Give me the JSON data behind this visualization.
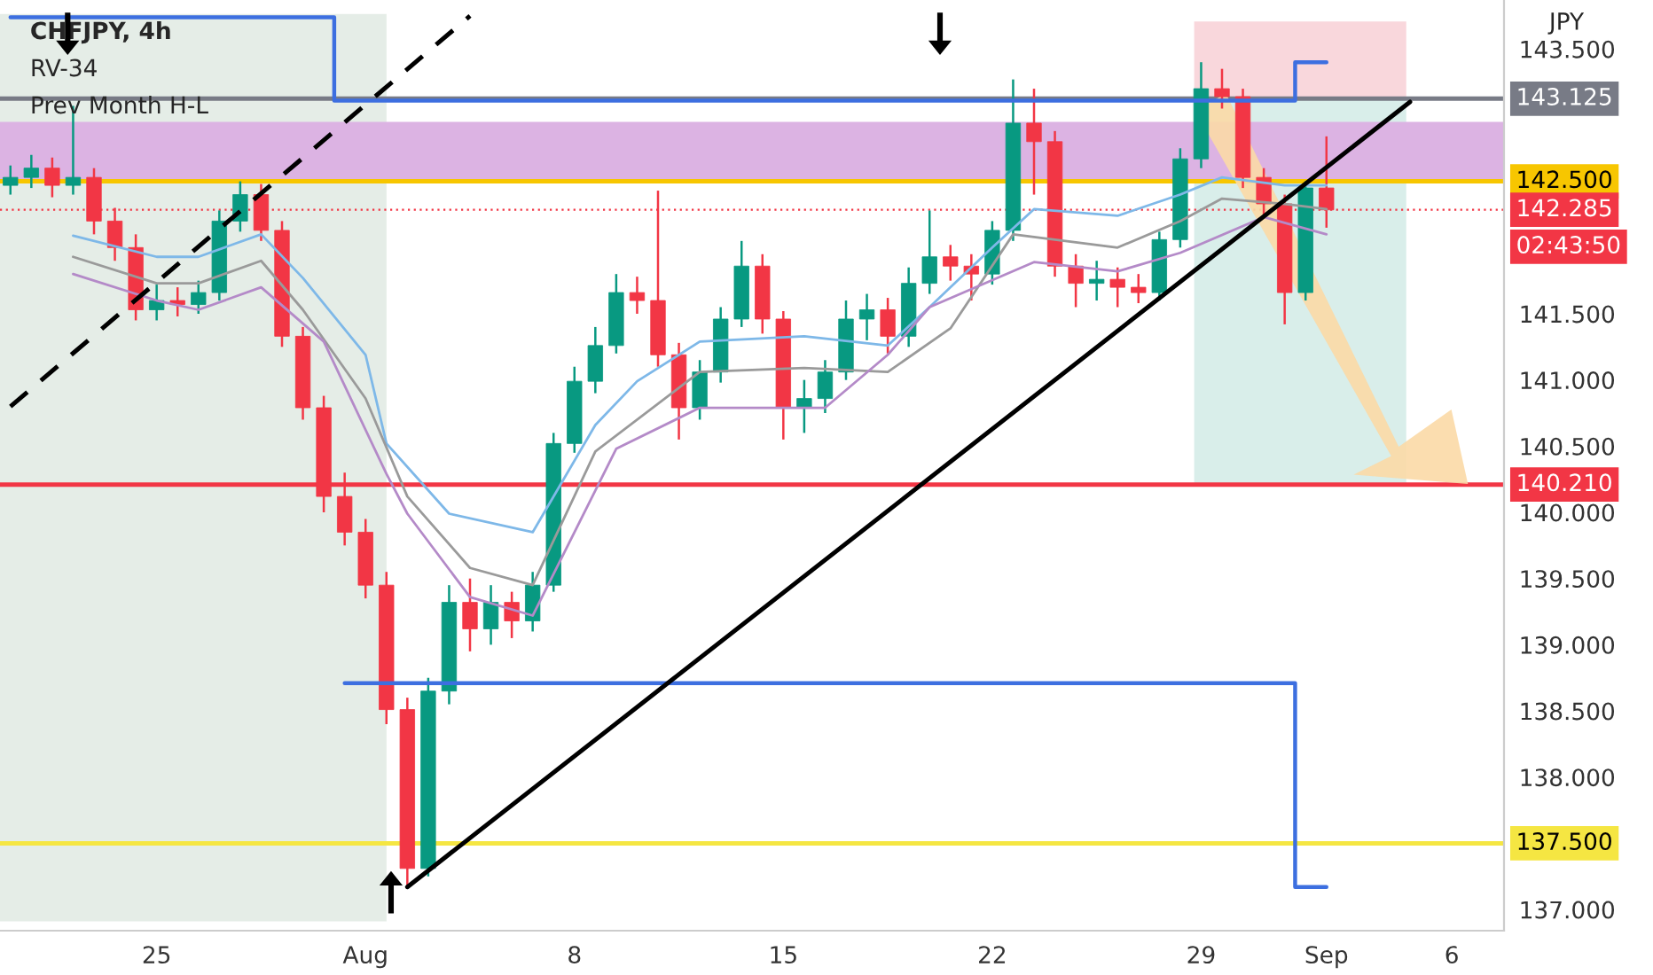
{
  "chart_data": {
    "type": "candlestick",
    "categories": [
      null,
      null,
      null,
      null,
      null,
      null,
      null,
      "25",
      null,
      null,
      null,
      null,
      null,
      null,
      null,
      null,
      null,
      "Aug",
      null,
      null,
      null,
      null,
      null,
      null,
      null,
      null,
      null,
      "8",
      null,
      null,
      null,
      null,
      null,
      null,
      null,
      null,
      null,
      "15",
      null,
      null,
      null,
      null,
      null,
      null,
      null,
      null,
      null,
      "22",
      null,
      null,
      null,
      null,
      null,
      null,
      null,
      null,
      null,
      "29",
      null,
      null,
      null,
      null,
      null,
      "Sep",
      null,
      null,
      null,
      null,
      null,
      "6",
      null,
      null
    ],
    "ohlc": [
      [
        142.47,
        142.62,
        142.4,
        142.53
      ],
      [
        142.53,
        142.7,
        142.45,
        142.6
      ],
      [
        142.6,
        142.68,
        142.38,
        142.47
      ],
      [
        142.47,
        143.07,
        142.4,
        142.53
      ],
      [
        142.53,
        142.6,
        142.1,
        142.2
      ],
      [
        142.2,
        142.3,
        141.9,
        142.0
      ],
      [
        142.0,
        142.1,
        141.45,
        141.53
      ],
      [
        141.53,
        141.72,
        141.45,
        141.6
      ],
      [
        141.6,
        141.7,
        141.48,
        141.57
      ],
      [
        141.57,
        141.75,
        141.5,
        141.66
      ],
      [
        141.66,
        142.28,
        141.6,
        142.2
      ],
      [
        142.2,
        142.5,
        142.12,
        142.4
      ],
      [
        142.4,
        142.48,
        142.05,
        142.13
      ],
      [
        142.13,
        142.2,
        141.25,
        141.33
      ],
      [
        141.33,
        141.4,
        140.7,
        140.79
      ],
      [
        140.79,
        140.88,
        140.0,
        140.12
      ],
      [
        140.12,
        140.3,
        139.75,
        139.85
      ],
      [
        139.85,
        139.95,
        139.35,
        139.45
      ],
      [
        139.45,
        139.55,
        138.4,
        138.51
      ],
      [
        138.51,
        138.6,
        137.17,
        137.31
      ],
      [
        137.31,
        138.75,
        137.25,
        138.65
      ],
      [
        138.65,
        139.45,
        138.55,
        139.32
      ],
      [
        139.32,
        139.5,
        138.95,
        139.12
      ],
      [
        139.12,
        139.45,
        139.0,
        139.32
      ],
      [
        139.32,
        139.4,
        139.05,
        139.18
      ],
      [
        139.18,
        139.55,
        139.1,
        139.45
      ],
      [
        139.45,
        140.6,
        139.4,
        140.52
      ],
      [
        140.52,
        141.1,
        140.45,
        140.99
      ],
      [
        140.99,
        141.4,
        140.9,
        141.26
      ],
      [
        141.26,
        141.8,
        141.2,
        141.66
      ],
      [
        141.66,
        141.78,
        141.5,
        141.6
      ],
      [
        141.6,
        142.43,
        141.1,
        141.19
      ],
      [
        141.19,
        141.28,
        140.55,
        140.79
      ],
      [
        140.79,
        141.15,
        140.7,
        141.06
      ],
      [
        141.06,
        141.55,
        140.98,
        141.46
      ],
      [
        141.46,
        142.05,
        141.4,
        141.86
      ],
      [
        141.86,
        141.95,
        141.35,
        141.46
      ],
      [
        141.46,
        141.52,
        140.55,
        140.79
      ],
      [
        140.79,
        141.0,
        140.6,
        140.86
      ],
      [
        140.86,
        141.15,
        140.75,
        141.06
      ],
      [
        141.06,
        141.6,
        141.0,
        141.46
      ],
      [
        141.46,
        141.65,
        141.3,
        141.53
      ],
      [
        141.53,
        141.62,
        141.2,
        141.33
      ],
      [
        141.33,
        141.85,
        141.25,
        141.73
      ],
      [
        141.73,
        142.28,
        141.65,
        141.93
      ],
      [
        141.93,
        142.02,
        141.75,
        141.86
      ],
      [
        141.86,
        141.95,
        141.6,
        141.8
      ],
      [
        141.8,
        142.2,
        141.72,
        142.13
      ],
      [
        142.13,
        143.27,
        142.05,
        142.94
      ],
      [
        142.94,
        143.2,
        142.4,
        142.8
      ],
      [
        142.8,
        142.88,
        141.78,
        141.86
      ],
      [
        141.86,
        141.95,
        141.55,
        141.73
      ],
      [
        141.73,
        141.9,
        141.6,
        141.76
      ],
      [
        141.76,
        141.85,
        141.55,
        141.7
      ],
      [
        141.7,
        141.8,
        141.58,
        141.66
      ],
      [
        141.66,
        142.12,
        141.6,
        142.06
      ],
      [
        142.06,
        142.75,
        142.0,
        142.67
      ],
      [
        142.67,
        143.4,
        142.6,
        143.2
      ],
      [
        143.2,
        143.35,
        143.05,
        143.14
      ],
      [
        143.14,
        143.2,
        142.45,
        142.53
      ],
      [
        142.53,
        142.6,
        142.25,
        142.33
      ],
      [
        142.33,
        142.4,
        141.42,
        141.66
      ],
      [
        141.66,
        142.5,
        141.6,
        142.45
      ],
      [
        142.45,
        142.84,
        142.15,
        142.285
      ],
      null,
      null,
      null,
      null,
      null,
      null,
      null,
      null
    ],
    "colors": [
      "#089981",
      "#089981",
      "#f23645",
      "#089981",
      "#f23645",
      "#f23645",
      "#f23645",
      "#089981",
      "#f23645",
      "#089981",
      "#089981",
      "#089981",
      "#f23645",
      "#f23645",
      "#f23645",
      "#f23645",
      "#f23645",
      "#f23645",
      "#f23645",
      "#f23645",
      "#089981",
      "#089981",
      "#f23645",
      "#089981",
      "#f23645",
      "#089981",
      "#089981",
      "#089981",
      "#089981",
      "#089981",
      "#f23645",
      "#f23645",
      "#f23645",
      "#089981",
      "#089981",
      "#089981",
      "#f23645",
      "#f23645",
      "#089981",
      "#089981",
      "#089981",
      "#089981",
      "#f23645",
      "#089981",
      "#089981",
      "#f23645",
      "#f23645",
      "#089981",
      "#089981",
      "#f23645",
      "#f23645",
      "#f23645",
      "#089981",
      "#f23645",
      "#f23645",
      "#089981",
      "#089981",
      "#089981",
      "#f23645",
      "#f23645",
      "#f23645",
      "#f23645",
      "#089981",
      "#f23645",
      null,
      null,
      null,
      null,
      null,
      null,
      null,
      null
    ],
    "series": [
      {
        "type": "line",
        "color": "#7eb8e8",
        "values": [
          null,
          null,
          null,
          142.09,
          null,
          null,
          null,
          141.93,
          null,
          141.93,
          null,
          null,
          142.1,
          null,
          141.77,
          null,
          null,
          141.19,
          140.52,
          null,
          null,
          139.99,
          null,
          null,
          null,
          139.85,
          null,
          null,
          140.66,
          null,
          140.99,
          null,
          null,
          141.29,
          null,
          null,
          null,
          null,
          141.33,
          null,
          null,
          null,
          141.26,
          null,
          141.55,
          null,
          null,
          142.0,
          null,
          142.29,
          null,
          null,
          null,
          142.24,
          null,
          null,
          142.4,
          null,
          142.53,
          null,
          null,
          142.47,
          null,
          142.47,
          null,
          null,
          null,
          null,
          null,
          null,
          null,
          null
        ]
      },
      {
        "type": "line",
        "color": "#9a9a9a",
        "values": [
          null,
          null,
          null,
          141.93,
          null,
          null,
          null,
          141.73,
          null,
          141.73,
          null,
          null,
          141.9,
          null,
          141.53,
          null,
          null,
          140.86,
          null,
          140.12,
          null,
          null,
          139.58,
          null,
          null,
          139.45,
          null,
          null,
          140.46,
          null,
          null,
          null,
          null,
          141.06,
          null,
          null,
          null,
          null,
          141.09,
          null,
          null,
          null,
          141.06,
          null,
          null,
          141.39,
          null,
          null,
          142.1,
          null,
          null,
          null,
          null,
          142.0,
          null,
          null,
          142.2,
          null,
          142.37,
          null,
          null,
          142.33,
          null,
          142.29,
          null,
          null,
          null,
          null,
          null,
          null,
          null,
          null
        ]
      },
      {
        "type": "line",
        "color": "#b48ac8",
        "values": [
          null,
          null,
          null,
          141.8,
          null,
          null,
          null,
          141.6,
          null,
          141.53,
          null,
          null,
          141.7,
          null,
          null,
          141.29,
          null,
          null,
          140.29,
          139.99,
          null,
          null,
          139.36,
          null,
          null,
          139.22,
          null,
          null,
          null,
          140.48,
          null,
          null,
          null,
          140.79,
          null,
          null,
          null,
          null,
          null,
          140.79,
          null,
          null,
          141.19,
          null,
          141.55,
          null,
          null,
          null,
          null,
          141.89,
          null,
          null,
          null,
          141.82,
          null,
          null,
          141.96,
          null,
          null,
          null,
          142.23,
          null,
          null,
          142.1,
          null,
          null,
          null,
          null,
          null,
          null,
          null,
          null
        ]
      },
      {
        "type": "step",
        "color": "#3d6fe0",
        "values": [
          143.74,
          143.74,
          143.74,
          143.74,
          143.74,
          143.74,
          143.74,
          143.74,
          143.74,
          143.74,
          143.74,
          143.74,
          143.74,
          143.74,
          143.74,
          143.74,
          143.11,
          143.11,
          143.11,
          143.11,
          143.11,
          143.11,
          143.11,
          143.11,
          143.11,
          143.11,
          143.11,
          143.11,
          143.11,
          143.11,
          143.11,
          143.11,
          143.11,
          143.11,
          143.11,
          143.11,
          143.11,
          143.11,
          143.11,
          143.11,
          143.11,
          143.11,
          143.11,
          143.11,
          143.11,
          143.11,
          143.11,
          143.11,
          143.11,
          143.11,
          143.11,
          143.11,
          143.11,
          143.11,
          143.11,
          143.11,
          143.11,
          143.11,
          143.11,
          143.11,
          143.11,
          143.11,
          143.4,
          143.4,
          null,
          null,
          null,
          null,
          null,
          null,
          null,
          null
        ]
      },
      {
        "type": "step",
        "color": "#3d6fe0",
        "values": [
          null,
          null,
          null,
          null,
          null,
          null,
          null,
          null,
          null,
          null,
          null,
          null,
          null,
          null,
          null,
          null,
          138.71,
          138.71,
          138.71,
          138.71,
          138.71,
          138.71,
          138.71,
          138.71,
          138.71,
          138.71,
          138.71,
          138.71,
          138.71,
          138.71,
          138.71,
          138.71,
          138.71,
          138.71,
          138.71,
          138.71,
          138.71,
          138.71,
          138.71,
          138.71,
          138.71,
          138.71,
          138.71,
          138.71,
          138.71,
          138.71,
          138.71,
          138.71,
          138.71,
          138.71,
          138.71,
          138.71,
          138.71,
          138.71,
          138.71,
          138.71,
          138.71,
          138.71,
          138.71,
          138.71,
          138.71,
          138.71,
          137.17,
          137.17,
          null,
          null,
          null,
          null,
          null,
          null,
          null,
          null
        ]
      },
      {
        "type": "line",
        "color": "#000000",
        "values": [
          null,
          null,
          null,
          null,
          null,
          null,
          null,
          null,
          null,
          null,
          null,
          null,
          null,
          null,
          null,
          null,
          null,
          null,
          null,
          137.17,
          null,
          null,
          null,
          null,
          null,
          null,
          null,
          null,
          null,
          null,
          null,
          null,
          null,
          null,
          null,
          null,
          null,
          null,
          null,
          null,
          null,
          null,
          null,
          null,
          null,
          null,
          null,
          null,
          null,
          null,
          null,
          null,
          null,
          null,
          null,
          null,
          null,
          null,
          null,
          null,
          null,
          null,
          null,
          null,
          null,
          null,
          null,
          143.1,
          null,
          null,
          null,
          null
        ]
      },
      {
        "type": "line",
        "color": "#000000",
        "line_style": "dashed",
        "values": [
          140.8,
          null,
          null,
          null,
          null,
          null,
          null,
          null,
          null,
          null,
          null,
          null,
          null,
          null,
          null,
          null,
          null,
          null,
          null,
          null,
          null,
          null,
          143.75,
          null,
          null,
          null,
          null,
          null,
          null,
          null,
          null,
          null,
          null,
          null,
          null,
          null,
          null,
          null,
          null,
          null,
          null,
          null,
          null,
          null,
          null,
          null,
          null,
          null,
          null,
          null,
          null,
          null,
          null,
          null,
          null,
          null,
          null,
          null,
          null,
          null,
          null,
          null,
          null,
          null,
          null,
          null,
          null,
          null,
          null,
          null,
          null,
          null
        ]
      }
    ],
    "bands": [
      {
        "axis": "y",
        "from": 142.5,
        "to": 142.95,
        "color": "#dcb3e3"
      }
    ],
    "ref_lines": [
      {
        "axis": "y",
        "value": 140.21,
        "label": "140.210",
        "color": "#f23645"
      },
      {
        "axis": "y",
        "value": 137.5,
        "label": "137.500",
        "color": "#f5e642"
      },
      {
        "axis": "y",
        "value": 142.5,
        "label": "142.500",
        "color": "#f7c600"
      },
      {
        "axis": "y",
        "value": 143.125,
        "label": "143.125",
        "color": "#787b86"
      },
      {
        "axis": "y",
        "value": 142.285,
        "label": "142.285",
        "color": "#f23645",
        "line_style": "dotted"
      }
    ],
    "annotations": [
      "CHFJPY, 4h",
      "RV-34",
      "Prev Month H-L",
      "JPY",
      "02:43:50"
    ],
    "ylim": [
      136.84,
      143.87
    ],
    "yticks": [
      {
        "value": 137,
        "label": "137.000"
      },
      {
        "value": 137.5,
        "label": null
      },
      {
        "value": 138,
        "label": "138.000"
      },
      {
        "value": 138.5,
        "label": "138.500"
      },
      {
        "value": 139,
        "label": "139.000"
      },
      {
        "value": 139.5,
        "label": "139.500"
      },
      {
        "value": 140,
        "label": "140.000"
      },
      {
        "value": 140.5,
        "label": "140.500"
      },
      {
        "value": 141,
        "label": "141.000"
      },
      {
        "value": 141.5,
        "label": "141.500"
      },
      {
        "value": 143.5,
        "label": "143.500"
      }
    ],
    "grid": false,
    "legend": false
  }
}
